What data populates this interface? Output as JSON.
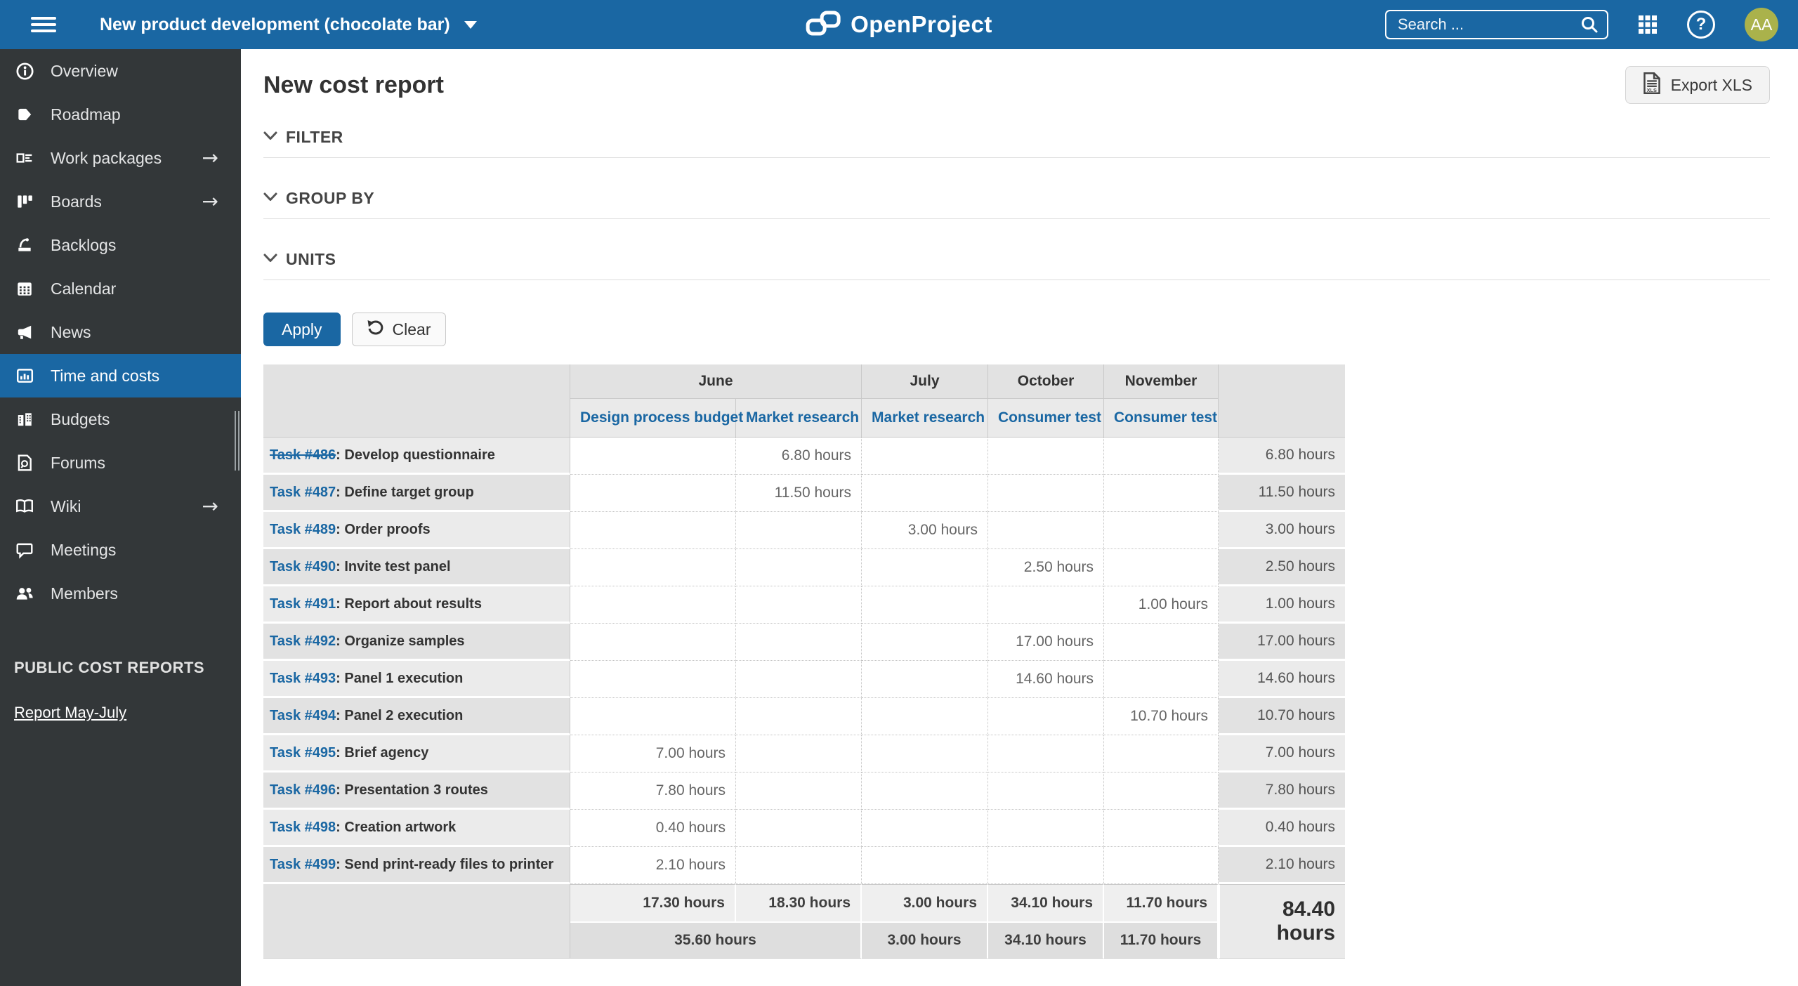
{
  "colors": {
    "accent": "#1a67a3",
    "sidebar_bg": "#333739",
    "avatar_bg": "#aab24b",
    "link_blue": "#1a67a3"
  },
  "topbar": {
    "project_name": "New product development (chocolate bar)",
    "logo_text": "OpenProject",
    "search_placeholder": "Search ...",
    "avatar_initials": "AA"
  },
  "sidebar": {
    "items": [
      {
        "id": "overview",
        "label": "Overview",
        "icon": "info",
        "arrow": false,
        "active": false
      },
      {
        "id": "roadmap",
        "label": "Roadmap",
        "icon": "tag",
        "arrow": false,
        "active": false
      },
      {
        "id": "work-packages",
        "label": "Work packages",
        "icon": "work-packages",
        "arrow": true,
        "active": false
      },
      {
        "id": "boards",
        "label": "Boards",
        "icon": "boards",
        "arrow": true,
        "active": false
      },
      {
        "id": "backlogs",
        "label": "Backlogs",
        "icon": "backlogs",
        "arrow": false,
        "active": false
      },
      {
        "id": "calendar",
        "label": "Calendar",
        "icon": "calendar",
        "arrow": false,
        "active": false
      },
      {
        "id": "news",
        "label": "News",
        "icon": "megaphone",
        "arrow": false,
        "active": false
      },
      {
        "id": "time-and-costs",
        "label": "Time and costs",
        "icon": "time-costs",
        "arrow": false,
        "active": true
      },
      {
        "id": "budgets",
        "label": "Budgets",
        "icon": "budgets",
        "arrow": false,
        "active": false
      },
      {
        "id": "forums",
        "label": "Forums",
        "icon": "forums",
        "arrow": false,
        "active": false
      },
      {
        "id": "wiki",
        "label": "Wiki",
        "icon": "wiki",
        "arrow": true,
        "active": false
      },
      {
        "id": "meetings",
        "label": "Meetings",
        "icon": "meetings",
        "arrow": false,
        "active": false
      },
      {
        "id": "members",
        "label": "Members",
        "icon": "members",
        "arrow": false,
        "active": false
      }
    ],
    "section_title": "PUBLIC COST REPORTS",
    "section_link": "Report May-July"
  },
  "main": {
    "title": "New cost report",
    "export_button": "Export XLS",
    "sections": [
      "FILTER",
      "GROUP BY",
      "UNITS"
    ],
    "apply_button": "Apply",
    "clear_button": "Clear"
  },
  "table": {
    "month_groups": [
      {
        "label": "June",
        "span": 2
      },
      {
        "label": "July",
        "span": 1
      },
      {
        "label": "October",
        "span": 1
      },
      {
        "label": "November",
        "span": 1
      }
    ],
    "columns": [
      "Design process budget",
      "Market research",
      "Market research",
      "Consumer test",
      "Consumer test"
    ],
    "rows": [
      {
        "task": "Task #486",
        "struck": true,
        "desc": "Develop questionnaire",
        "values": [
          "",
          "6.80 hours",
          "",
          "",
          ""
        ],
        "total": "6.80 hours"
      },
      {
        "task": "Task #487",
        "struck": false,
        "desc": "Define target group",
        "values": [
          "",
          "11.50 hours",
          "",
          "",
          ""
        ],
        "total": "11.50 hours"
      },
      {
        "task": "Task #489",
        "struck": false,
        "desc": "Order proofs",
        "values": [
          "",
          "",
          "3.00 hours",
          "",
          ""
        ],
        "total": "3.00 hours"
      },
      {
        "task": "Task #490",
        "struck": false,
        "desc": "Invite test panel",
        "values": [
          "",
          "",
          "",
          "2.50 hours",
          ""
        ],
        "total": "2.50 hours"
      },
      {
        "task": "Task #491",
        "struck": false,
        "desc": "Report about results",
        "values": [
          "",
          "",
          "",
          "",
          "1.00 hours"
        ],
        "total": "1.00 hours"
      },
      {
        "task": "Task #492",
        "struck": false,
        "desc": "Organize samples",
        "values": [
          "",
          "",
          "",
          "17.00 hours",
          ""
        ],
        "total": "17.00 hours"
      },
      {
        "task": "Task #493",
        "struck": false,
        "desc": "Panel 1 execution",
        "values": [
          "",
          "",
          "",
          "14.60 hours",
          ""
        ],
        "total": "14.60 hours"
      },
      {
        "task": "Task #494",
        "struck": false,
        "desc": "Panel 2 execution",
        "values": [
          "",
          "",
          "",
          "",
          "10.70 hours"
        ],
        "total": "10.70 hours"
      },
      {
        "task": "Task #495",
        "struck": false,
        "desc": "Brief agency",
        "values": [
          "7.00 hours",
          "",
          "",
          "",
          ""
        ],
        "total": "7.00 hours"
      },
      {
        "task": "Task #496",
        "struck": false,
        "desc": "Presentation 3 routes",
        "values": [
          "7.80 hours",
          "",
          "",
          "",
          ""
        ],
        "total": "7.80 hours"
      },
      {
        "task": "Task #498",
        "struck": false,
        "desc": "Creation artwork",
        "values": [
          "0.40 hours",
          "",
          "",
          "",
          ""
        ],
        "total": "0.40 hours"
      },
      {
        "task": "Task #499",
        "struck": false,
        "desc": "Send print-ready files to printer",
        "values": [
          "2.10 hours",
          "",
          "",
          "",
          ""
        ],
        "total": "2.10 hours"
      }
    ],
    "footer": {
      "column_totals": [
        "17.30 hours",
        "18.30 hours",
        "3.00 hours",
        "34.10 hours",
        "11.70 hours"
      ],
      "group_totals": [
        {
          "label": "35.60 hours",
          "span": 2
        },
        {
          "label": "3.00 hours",
          "span": 1
        },
        {
          "label": "34.10 hours",
          "span": 1
        },
        {
          "label": "11.70 hours",
          "span": 1
        }
      ],
      "grand_total": "84.40 hours"
    }
  }
}
